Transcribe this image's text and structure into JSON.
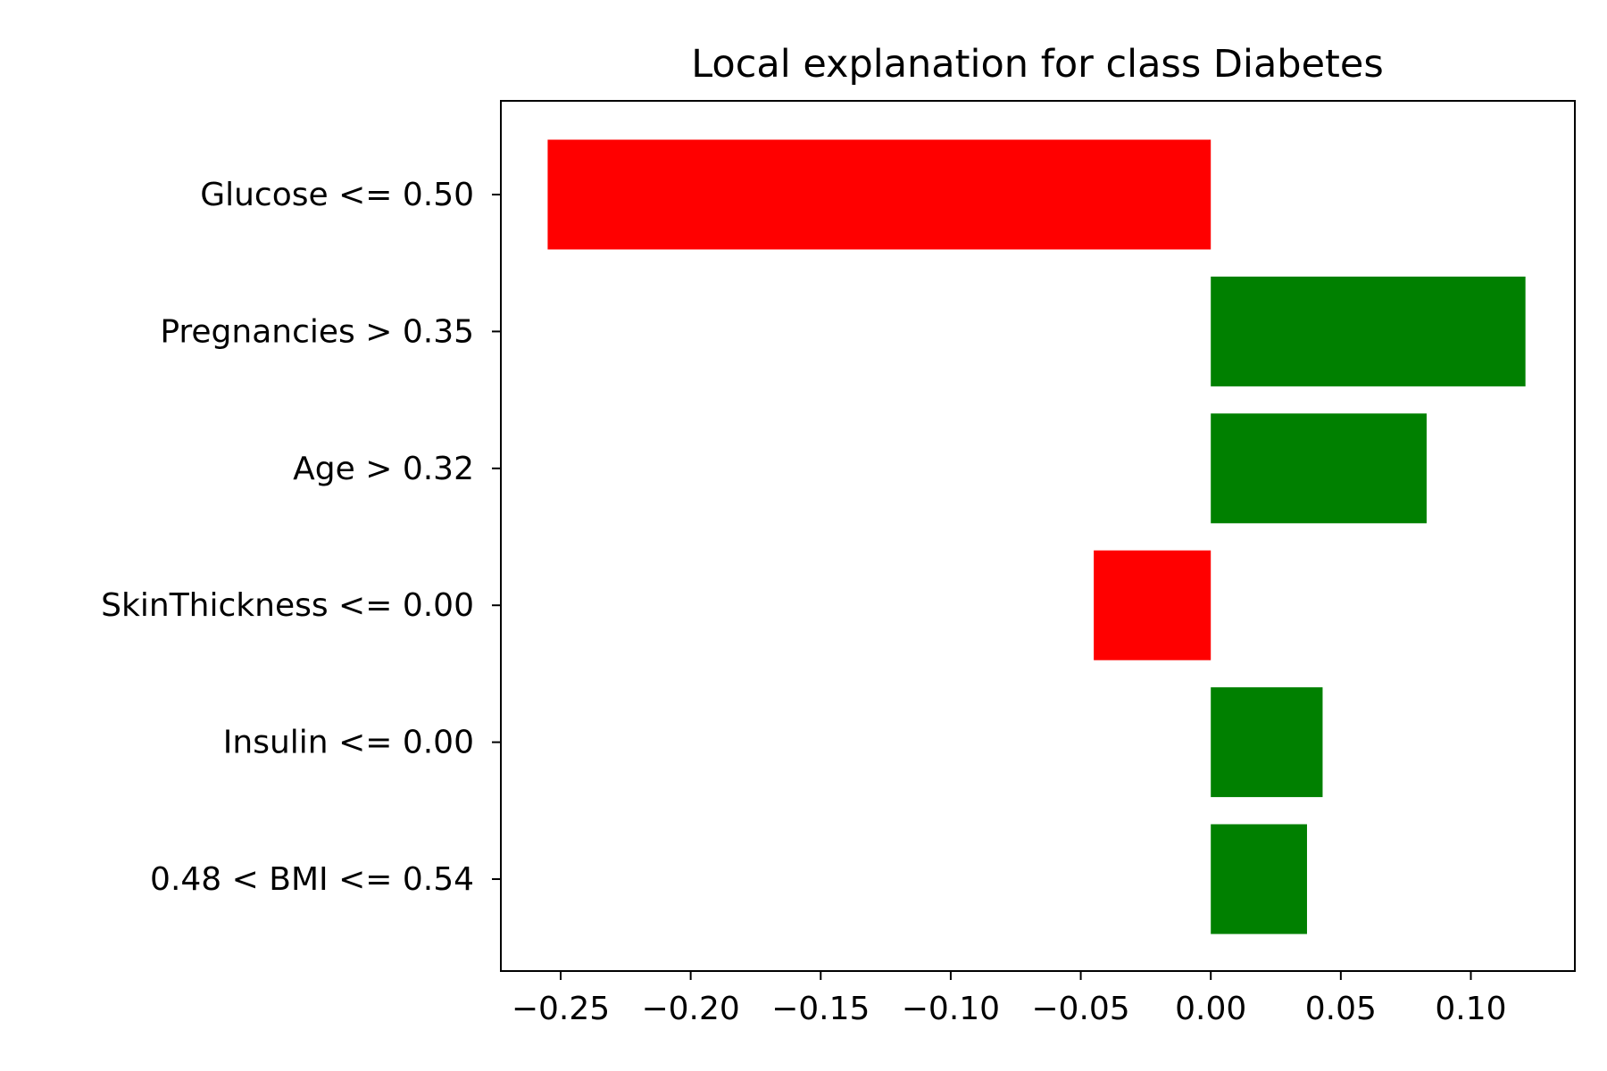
{
  "chart_data": {
    "type": "bar",
    "orientation": "horizontal",
    "title": "Local explanation for class Diabetes",
    "xlabel": "",
    "ylabel": "",
    "categories": [
      "Glucose <= 0.50",
      "Pregnancies > 0.35",
      "Age > 0.32",
      "SkinThickness <= 0.00",
      "Insulin <= 0.00",
      "0.48 < BMI <= 0.54"
    ],
    "values": [
      -0.255,
      0.121,
      0.083,
      -0.045,
      0.043,
      0.037
    ],
    "bar_colors": [
      "#ff0000",
      "#008000",
      "#008000",
      "#ff0000",
      "#008000",
      "#008000"
    ],
    "xlim": [
      -0.273,
      0.14
    ],
    "x_ticks": [
      -0.25,
      -0.2,
      -0.15,
      -0.1,
      -0.05,
      0.0,
      0.05,
      0.1
    ],
    "x_tick_labels": [
      "−0.25",
      "−0.20",
      "−0.15",
      "−0.10",
      "−0.05",
      "0.00",
      "0.05",
      "0.10"
    ],
    "grid": false,
    "legend": "none",
    "colors": {
      "positive": "#008000",
      "negative": "#ff0000",
      "axes": "#000000",
      "background": "#ffffff"
    }
  }
}
